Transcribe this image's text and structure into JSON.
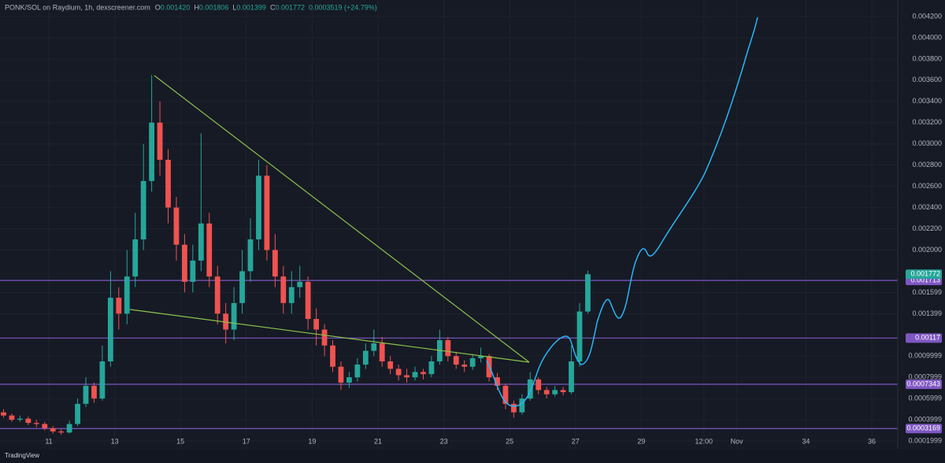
{
  "header": {
    "symbol": "PONK/SOL on Raydium, 1h, dexscreener.com",
    "ohlc": [
      {
        "label": "O",
        "value": "0.001420"
      },
      {
        "label": "H",
        "value": "0.001806"
      },
      {
        "label": "L",
        "value": "0.001399"
      },
      {
        "label": "C",
        "value": "0.001772"
      }
    ],
    "change": "0.0003519 (+24.79%)"
  },
  "chart_data": {
    "type": "candlestick",
    "up_color": "#26a69a",
    "down_color": "#ef5350",
    "grid": true,
    "x": [
      9.625,
      9.875,
      10.125,
      10.375,
      10.625,
      10.875,
      11.125,
      11.375,
      11.625,
      11.875,
      12.125,
      12.375,
      12.625,
      12.875,
      13.125,
      13.375,
      13.625,
      13.875,
      14.125,
      14.375,
      14.625,
      14.875,
      15.125,
      15.375,
      15.625,
      15.875,
      16.125,
      16.375,
      16.625,
      16.875,
      17.125,
      17.375,
      17.625,
      17.875,
      18.125,
      18.375,
      18.625,
      18.875,
      19.125,
      19.375,
      19.625,
      19.875,
      20.125,
      20.375,
      20.625,
      20.875,
      21.125,
      21.375,
      21.625,
      21.875,
      22.125,
      22.375,
      22.625,
      22.875,
      23.125,
      23.375,
      23.625,
      23.875,
      24.125,
      24.375,
      24.625,
      24.875,
      25.125,
      25.375,
      25.625,
      25.875,
      26.125,
      26.375,
      26.625,
      26.875,
      27.125,
      27.375
    ],
    "open": [
      0.00047,
      0.00044,
      0.0004,
      0.00041,
      0.00037,
      0.00036,
      0.00032,
      0.00029,
      0.00028,
      0.00036,
      0.00055,
      0.00072,
      0.0006,
      0.00095,
      0.00155,
      0.0014,
      0.00175,
      0.0021,
      0.00265,
      0.0032,
      0.00285,
      0.0024,
      0.00205,
      0.0017,
      0.0019,
      0.00225,
      0.00175,
      0.0014,
      0.00125,
      0.0015,
      0.0018,
      0.0021,
      0.0027,
      0.002,
      0.00175,
      0.0015,
      0.00165,
      0.0017,
      0.00135,
      0.00125,
      0.0011,
      0.0009,
      0.00075,
      0.0008,
      0.00092,
      0.00105,
      0.00112,
      0.00095,
      0.00088,
      0.00082,
      0.0008,
      0.00085,
      0.00083,
      0.00095,
      0.00115,
      0.001,
      0.00092,
      0.0009,
      0.00098,
      0.001,
      0.0008,
      0.00072,
      0.00055,
      0.00047,
      0.0006,
      0.00078,
      0.00068,
      0.00064,
      0.00068,
      0.00066,
      0.00095,
      0.00142
    ],
    "high": [
      0.0005,
      0.00046,
      0.00044,
      0.00043,
      0.0004,
      0.00038,
      0.00034,
      0.00031,
      0.00039,
      0.0006,
      0.0008,
      0.00075,
      0.0011,
      0.0018,
      0.00165,
      0.002,
      0.00235,
      0.003,
      0.00365,
      0.0034,
      0.00295,
      0.0025,
      0.00215,
      0.00205,
      0.0031,
      0.00235,
      0.00185,
      0.0015,
      0.00165,
      0.002,
      0.0023,
      0.00285,
      0.0028,
      0.00215,
      0.00185,
      0.0018,
      0.00185,
      0.00175,
      0.00145,
      0.0013,
      0.00115,
      0.00095,
      0.00085,
      0.00098,
      0.00112,
      0.00125,
      0.00118,
      0.001,
      0.00092,
      0.00088,
      0.0009,
      0.00088,
      0.001,
      0.00125,
      0.00118,
      0.00104,
      0.00096,
      0.00102,
      0.00108,
      0.00102,
      0.00084,
      0.00074,
      0.00058,
      0.00064,
      0.00085,
      0.0008,
      0.00071,
      0.00072,
      0.00071,
      0.0011,
      0.0015,
      0.001806
    ],
    "low": [
      0.00042,
      0.00038,
      0.00038,
      0.00035,
      0.00033,
      0.0003,
      0.00027,
      0.00026,
      0.00027,
      0.00034,
      0.00052,
      0.00056,
      0.00058,
      0.0009,
      0.00125,
      0.0013,
      0.00165,
      0.002,
      0.00255,
      0.0027,
      0.00225,
      0.0019,
      0.0016,
      0.0016,
      0.0018,
      0.00165,
      0.0013,
      0.00112,
      0.00115,
      0.0014,
      0.0017,
      0.002,
      0.0019,
      0.00165,
      0.0014,
      0.0014,
      0.00155,
      0.00125,
      0.0011,
      0.001,
      0.00085,
      0.00068,
      0.0007,
      0.00076,
      0.00088,
      0.001,
      0.0009,
      0.00083,
      0.00077,
      0.00075,
      0.00077,
      0.00078,
      0.0008,
      0.00092,
      0.00095,
      0.00088,
      0.00085,
      0.00087,
      0.00094,
      0.00076,
      0.00068,
      0.0005,
      0.00042,
      0.00045,
      0.00058,
      0.00064,
      0.0006,
      0.00062,
      0.00063,
      0.00064,
      0.0009,
      0.001399
    ],
    "close": [
      0.00044,
      0.0004,
      0.00041,
      0.00037,
      0.00036,
      0.00032,
      0.00029,
      0.00028,
      0.00036,
      0.00055,
      0.00072,
      0.0006,
      0.00095,
      0.00155,
      0.0014,
      0.00175,
      0.0021,
      0.00265,
      0.0032,
      0.00285,
      0.0024,
      0.00205,
      0.0017,
      0.0019,
      0.00225,
      0.00175,
      0.0014,
      0.00125,
      0.0015,
      0.0018,
      0.0021,
      0.0027,
      0.002,
      0.00175,
      0.0015,
      0.00165,
      0.0017,
      0.00135,
      0.00125,
      0.0011,
      0.0009,
      0.00075,
      0.0008,
      0.00092,
      0.00105,
      0.00112,
      0.00095,
      0.00088,
      0.00082,
      0.0008,
      0.00085,
      0.00083,
      0.00095,
      0.00115,
      0.001,
      0.00092,
      0.0009,
      0.00098,
      0.001,
      0.0008,
      0.00072,
      0.00055,
      0.00047,
      0.0006,
      0.00078,
      0.00068,
      0.00064,
      0.00068,
      0.00066,
      0.00095,
      0.00142,
      0.001772
    ],
    "levels": [
      0.001713,
      0.00117,
      0.0007343,
      0.0003169
    ],
    "level_color": "#7e57c2",
    "ylim": [
      0.000126,
      0.004356
    ],
    "yticks": [
      {
        "value": 0.0042,
        "label": "0.004200"
      },
      {
        "value": 0.004,
        "label": "0.004000"
      },
      {
        "value": 0.0038,
        "label": "0.003800"
      },
      {
        "value": 0.0036,
        "label": "0.003600"
      },
      {
        "value": 0.0034,
        "label": "0.003400"
      },
      {
        "value": 0.0032,
        "label": "0.003200"
      },
      {
        "value": 0.003,
        "label": "0.003000"
      },
      {
        "value": 0.0028,
        "label": "0.002800"
      },
      {
        "value": 0.0026,
        "label": "0.002600"
      },
      {
        "value": 0.0024,
        "label": "0.002400"
      },
      {
        "value": 0.0022,
        "label": "0.002200"
      },
      {
        "value": 0.002,
        "label": "0.002000"
      },
      0.001599,
      0.001399,
      0.0009999,
      0.0007999,
      0.0005999,
      0.0003999,
      0.0001999
    ],
    "xlim": [
      9.517,
      36.79
    ],
    "xticks": [
      11,
      13,
      15,
      17,
      19,
      21,
      23,
      25,
      27,
      29,
      {
        "value": 30.9,
        "label": "12:00"
      },
      {
        "value": 31.9,
        "label": "Nov"
      },
      34,
      36
    ]
  },
  "footer": {
    "brand": "TradingView"
  }
}
